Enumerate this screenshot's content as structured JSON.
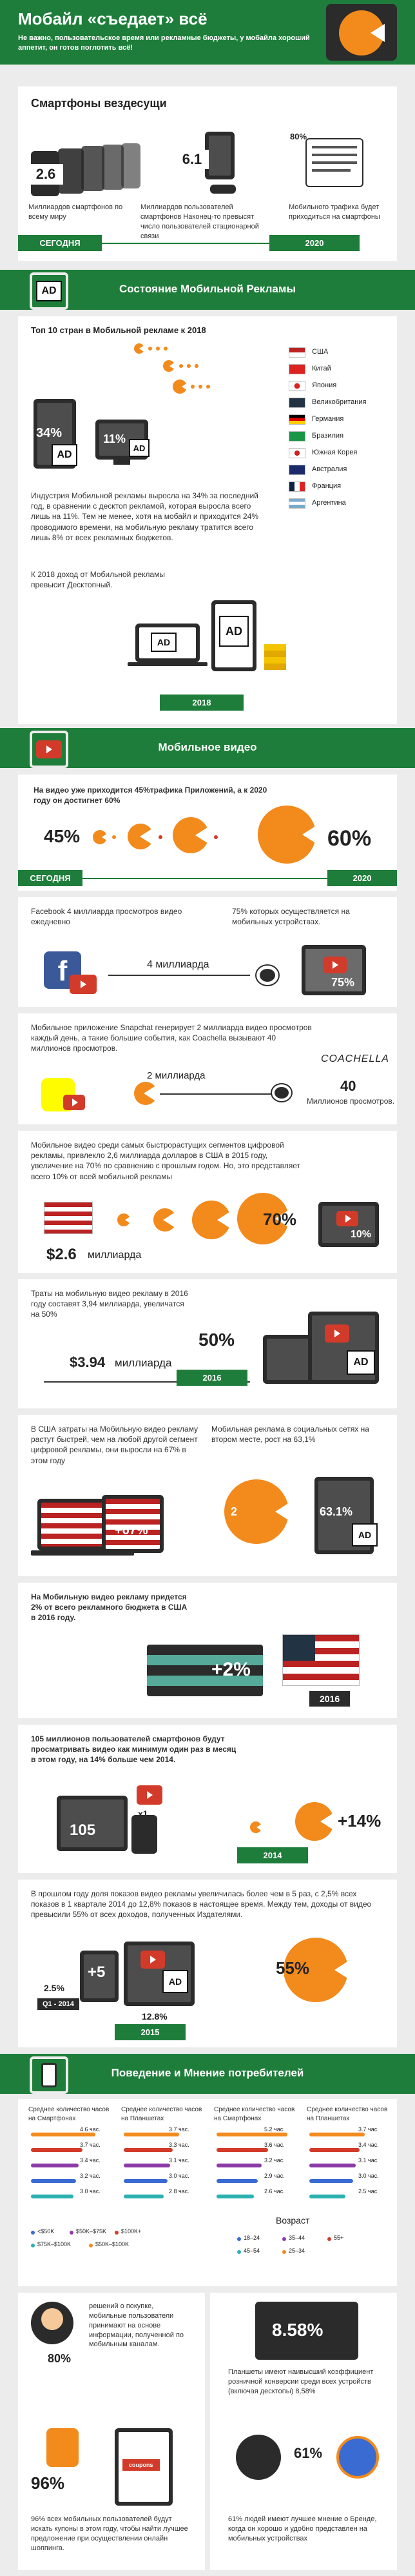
{
  "header": {
    "title": "Мобайл «съедает» всё",
    "subtitle": "Не важно, пользовательское время или рекламные бюджеты, у мобайла хороший аппетит, он готов поглотить всё!"
  },
  "smartphones": {
    "heading": "Смартфоны вездесущи",
    "stat1_value": "2.6",
    "stat1_text": "Миллиардов смартфонов по всему миру",
    "stat2_value": "6.1",
    "stat2_text": "Миллиардов пользователей смартфонов Наконец-то превысят число пользователей стационарной связи",
    "stat3_value": "80%",
    "stat3_text": "Мобильного трафика будет приходиться на смартфоны",
    "today": "СЕГОДНЯ",
    "year2020": "2020"
  },
  "ad_section": {
    "title": "Состояние Мобильной Рекламы",
    "emblem": "AD",
    "top10_heading": "Топ 10 стран в Мобильной рекламе к 2018",
    "countries": [
      "США",
      "Китай",
      "Япония",
      "Великобритания",
      "Германия",
      "Бразилия",
      "Южная Корея",
      "Австралия",
      "Франция",
      "Аргентина"
    ],
    "pct34": "34%",
    "pct11": "11%",
    "ad_label": "AD",
    "industry_text": "Индустрия Мобильной рекламы выросла на 34% за последний год, в сравнении с десктоп рекламой, которая выросла всего лишь на 11%. Тем не менее, хотя на мобайл и приходится 24% проводимого времени, на мобильную рекламу тратится всего лишь 8% от всех рекламных бюджетов.",
    "text2018": "К 2018 доход от Мобильной рекламы превысит Десктопный.",
    "year2018": "2018"
  },
  "video": {
    "title": "Мобильное видео",
    "traffic_text": "На видео уже приходится 45%трафика Приложений, а к 2020 году он достигнет 60%",
    "pct45": "45%",
    "pct60": "60%",
    "today": "СЕГОДНЯ",
    "year2020": "2020",
    "fb_text": "Facebook 4 миллиарда просмотров видео ежедневно",
    "fb_text2": "75% которых осуществляется на мобильных устройствах.",
    "fb_billion": "4 миллиарда",
    "fb_pct": "75%",
    "snap_text": "Мобильное приложение Snapchat генерирует 2 миллиарда видео просмотров каждый день, а такие большие события, как Coachella вызывают 40 миллионов просмотров.",
    "snap_billion": "2 миллиарда",
    "coachella": "COACHELLA",
    "snap_40": "40",
    "snap_40_text": "Миллионов просмотров.",
    "us_text": "Мобильное видео среди самых быстрорастущих сегментов цифровой рекламы, привлекло 2,6 миллиарда долларов в США в 2015 году, увеличение на 70% по сравнению с прошлым годом. Но, это представляет всего 10% от всей мобильной рекламы",
    "us_value": "$2.6",
    "us_value_unit": "миллиарда",
    "pct70": "70%",
    "pct10": "10%",
    "spend_text": "Траты на мобильную видео рекламу в 2016 году составят 3,94 миллиарда, увеличатся на 50%",
    "spend_value": "$3.94",
    "spend_unit": "миллиарда",
    "pct50": "50%",
    "year2016": "2016",
    "growth_text": "В США затраты на Мобильную видео рекламу растут быстрей, чем на любой другой сегмент цифровой рекламы, они выросли на 67% в этом году",
    "pct67": "+67%",
    "social_text": "Мобильная реклама в социальных сетях на втором месте, рост на 63,1%",
    "pct2": "2",
    "pct631": "63.1%",
    "share_text": "На Мобильную видео рекламу придется 2% от всего рекламного бюджета в США в 2016 году.",
    "pct2b": "+2%",
    "year2016b": "2016",
    "users_text": "105 миллионов пользователей смартфонов будут просматривать видео как минимум один раз в месяц в этом году, на 14% больше чем 2014.",
    "num105": "105",
    "x1": "x1",
    "pct14": "+14%",
    "year2014": "2014",
    "growth5_text": "В прошлом году доля показов видео рекламы увеличилась более чем в 5 раз, с 2,5% всех показов в 1 квартале 2014 до 12,8% показов в настоящее время. Между тем, доходы от видео превысили 55% от всех доходов, полученных Издателями.",
    "pct25": "2.5%",
    "q1": "Q1 - 2014",
    "x5": "+5",
    "pct128": "12.8%",
    "year2015": "2015",
    "pct55": "55%"
  },
  "behavior": {
    "title": "Поведение и Мнение потребителей",
    "col1": "Среднее количество часов на Смартфонах",
    "col2": "Среднее количество часов на Планшетах",
    "col3": "Среднее количество часов на Смартфонах",
    "col4": "Среднее количество часов на Планшетах",
    "income_legend": [
      "<$50K",
      "$50K–$75K",
      "$100K+",
      "$75K–$100K",
      "$50K–$100K"
    ],
    "age_title": "Возраст",
    "age_legend": [
      "18–24",
      "35–44",
      "55+",
      "45–54",
      "25–34"
    ],
    "hours_a": [
      "4.6 час.",
      "3.7 час.",
      "3.4 час.",
      "3.2 час.",
      "3.0 час."
    ],
    "hours_b": [
      "3.7 час.",
      "3.3 час.",
      "3.1 час.",
      "3.0 час.",
      "2.8 час."
    ],
    "hours_c": [
      "5.2 час.",
      "3.6 час.",
      "3.2 час.",
      "2.9 час.",
      "2.6 час."
    ],
    "hours_d": [
      "3.7 час.",
      "3.4 час.",
      "3.1 час.",
      "3.0 час.",
      "2.5 час."
    ],
    "pct80": "80%",
    "text80": "решений о покупке, мобильные пользователи принимают на основе информации, полученной по мобильным каналам.",
    "pct858": "8.58%",
    "text858": "Планшеты имеют наивысший коэффициент розничной конверсии среди всех устройств (включая десктопы) 8,58%",
    "pct96": "96%",
    "coupon": "coupons",
    "text96": "96% всех мобильных пользователей будут искать купоны в этом году, чтобы найти лучшее предложение при осуществлении онлайн шоппинга.",
    "pct61": "61%",
    "text61": "61% людей имеют лучшее мнение о Бренде, когда он хорошо и удобно представлен на мобильных устройствах"
  },
  "colors": {
    "green": "#1e7d3a",
    "orange": "#f28a1c",
    "dark": "#2b2b2b",
    "red": "#d23b2a"
  }
}
